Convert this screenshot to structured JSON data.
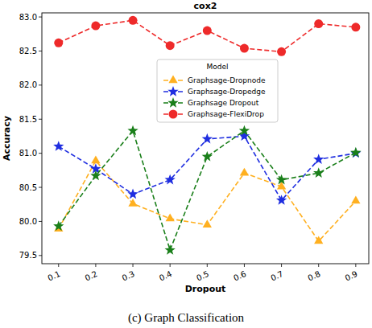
{
  "chart_data": {
    "type": "line",
    "title": "cox2",
    "x_label": "Dropout",
    "y_label": "Accuracy",
    "caption": "(c) Graph Classification",
    "legend_title": "Model",
    "x": [
      0.1,
      0.2,
      0.3,
      0.4,
      0.5,
      0.6,
      0.7,
      0.8,
      0.9
    ],
    "series": [
      {
        "name": "Graphsage-Dropnode",
        "color": "#ffb020",
        "marker": "triangle",
        "line_style": "dashed",
        "values": [
          79.89,
          80.89,
          80.26,
          80.04,
          79.95,
          80.71,
          80.51,
          79.71,
          80.3
        ]
      },
      {
        "name": "Graphsage-Dropedge",
        "color": "#1f2ee0",
        "marker": "star",
        "line_style": "dashed",
        "values": [
          81.1,
          80.77,
          80.4,
          80.61,
          81.21,
          81.25,
          80.31,
          80.91,
          81.0
        ]
      },
      {
        "name": "Graphsage Dropout",
        "color": "#1a7f1a",
        "marker": "star",
        "line_style": "dashed",
        "values": [
          79.93,
          80.67,
          81.33,
          79.58,
          80.95,
          81.33,
          80.61,
          80.71,
          81.01
        ]
      },
      {
        "name": "Graphsage-FlexiDrop",
        "color": "#ee2a2a",
        "marker": "circle",
        "line_style": "dashed",
        "values": [
          82.62,
          82.87,
          82.95,
          82.58,
          82.8,
          82.54,
          82.49,
          82.9,
          82.85
        ]
      }
    ],
    "xlim": [
      0.055,
      0.935
    ],
    "xticks": [
      0.1,
      0.2,
      0.3,
      0.4,
      0.5,
      0.6,
      0.7,
      0.8,
      0.9
    ],
    "ylim": [
      79.38,
      83.06
    ],
    "yticks": [
      79.5,
      {
        "value": 80,
        "label": "80.0"
      },
      80.5,
      {
        "value": 81,
        "label": "81.0"
      },
      81.5,
      {
        "value": 82,
        "label": "82.0"
      },
      82.5,
      {
        "value": 83,
        "label": "83.0"
      }
    ],
    "grid": false,
    "legend": "upper center"
  }
}
